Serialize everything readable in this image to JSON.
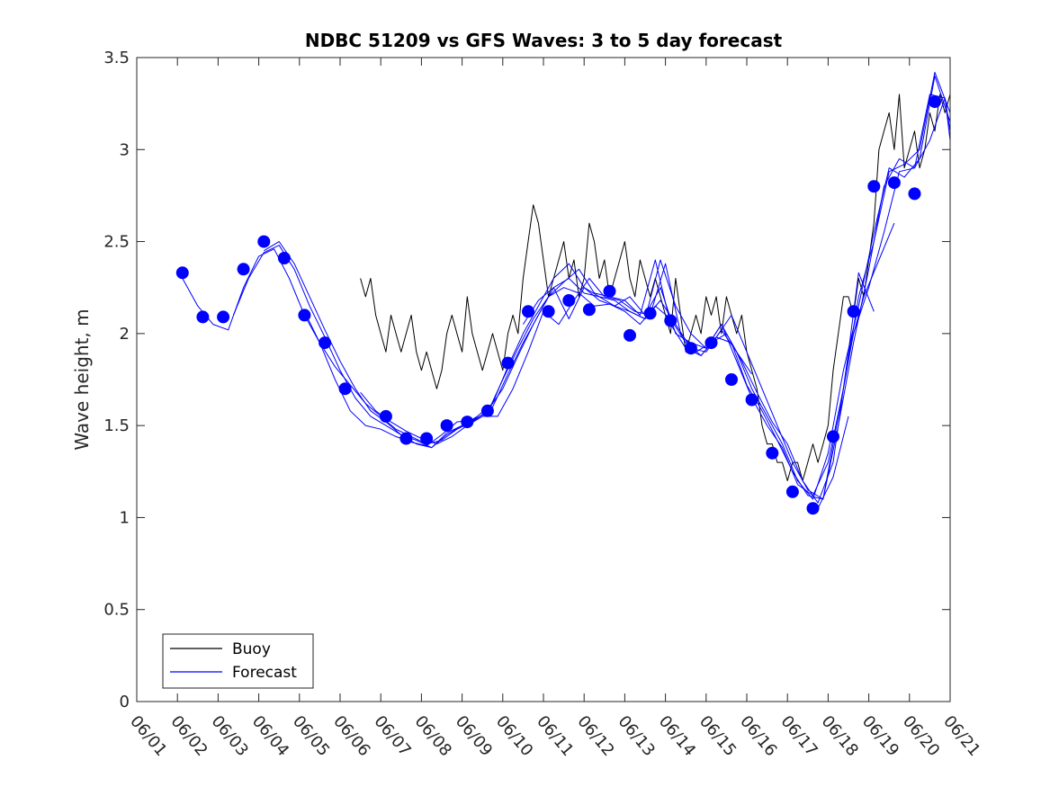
{
  "chart_data": {
    "type": "line",
    "title": "NDBC 51209 vs GFS Waves: 3 to 5 day forecast",
    "xlabel": "",
    "ylabel": "Wave height, m",
    "xlim": [
      "06/01",
      "06/21"
    ],
    "ylim": [
      0,
      3.5
    ],
    "x_ticks": [
      "06/01",
      "06/02",
      "06/03",
      "06/04",
      "06/05",
      "06/06",
      "06/07",
      "06/08",
      "06/09",
      "06/10",
      "06/11",
      "06/12",
      "06/13",
      "06/14",
      "06/15",
      "06/16",
      "06/17",
      "06/18",
      "06/19",
      "06/20",
      "06/21"
    ],
    "y_ticks": [
      "0",
      "0.5",
      "1",
      "1.5",
      "2",
      "2.5",
      "3",
      "3.5"
    ],
    "grid": false,
    "legend": {
      "position": "bottom-left",
      "entries": [
        "Buoy",
        "Forecast"
      ]
    },
    "colors": {
      "buoy": "#000000",
      "forecast": "#0000ff"
    },
    "series": [
      {
        "name": "Buoy",
        "style": "line",
        "x": [
          "06/06 12:00",
          "06/06 15:00",
          "06/06 18:00",
          "06/06 21:00",
          "06/07 00:00",
          "06/07 03:00",
          "06/07 06:00",
          "06/07 09:00",
          "06/07 12:00",
          "06/07 15:00",
          "06/07 18:00",
          "06/07 21:00",
          "06/08 00:00",
          "06/08 03:00",
          "06/08 06:00",
          "06/08 09:00",
          "06/08 12:00",
          "06/08 15:00",
          "06/08 18:00",
          "06/08 21:00",
          "06/09 00:00",
          "06/09 03:00",
          "06/09 06:00",
          "06/09 09:00",
          "06/09 12:00",
          "06/09 15:00",
          "06/09 18:00",
          "06/09 21:00",
          "06/10 00:00",
          "06/10 03:00",
          "06/10 06:00",
          "06/10 09:00",
          "06/10 12:00",
          "06/10 15:00",
          "06/10 18:00",
          "06/10 21:00",
          "06/11 00:00",
          "06/11 03:00",
          "06/11 06:00",
          "06/11 09:00",
          "06/11 12:00",
          "06/11 15:00",
          "06/11 18:00",
          "06/11 21:00",
          "06/12 00:00",
          "06/12 03:00",
          "06/12 06:00",
          "06/12 09:00",
          "06/12 12:00",
          "06/12 15:00",
          "06/12 18:00",
          "06/12 21:00",
          "06/13 00:00",
          "06/13 03:00",
          "06/13 06:00",
          "06/13 09:00",
          "06/13 12:00",
          "06/13 15:00",
          "06/13 18:00",
          "06/13 21:00",
          "06/14 00:00",
          "06/14 03:00",
          "06/14 06:00",
          "06/14 09:00",
          "06/14 12:00",
          "06/14 15:00",
          "06/14 18:00",
          "06/14 21:00",
          "06/15 00:00",
          "06/15 03:00",
          "06/15 06:00",
          "06/15 09:00",
          "06/15 12:00",
          "06/15 15:00",
          "06/15 18:00",
          "06/15 21:00",
          "06/16 00:00",
          "06/16 03:00",
          "06/16 06:00",
          "06/16 09:00",
          "06/16 12:00",
          "06/16 15:00",
          "06/16 18:00",
          "06/16 21:00",
          "06/17 00:00",
          "06/17 03:00",
          "06/17 06:00",
          "06/17 09:00",
          "06/17 12:00",
          "06/17 15:00",
          "06/17 18:00",
          "06/17 21:00",
          "06/18 00:00",
          "06/18 03:00",
          "06/18 06:00",
          "06/18 09:00",
          "06/18 12:00",
          "06/18 15:00",
          "06/18 18:00",
          "06/18 21:00",
          "06/19 00:00",
          "06/19 03:00",
          "06/19 06:00",
          "06/19 09:00",
          "06/19 12:00",
          "06/19 15:00",
          "06/19 18:00",
          "06/19 21:00",
          "06/20 00:00",
          "06/20 03:00",
          "06/20 06:00",
          "06/20 09:00",
          "06/20 12:00",
          "06/20 15:00",
          "06/20 18:00",
          "06/20 21:00",
          "06/21 00:00"
        ],
        "y": [
          2.3,
          2.2,
          2.3,
          2.1,
          2.0,
          1.9,
          2.1,
          2.0,
          1.9,
          2.0,
          2.1,
          1.9,
          1.8,
          1.9,
          1.8,
          1.7,
          1.8,
          2.0,
          2.1,
          2.0,
          1.9,
          2.2,
          2.0,
          1.9,
          1.8,
          1.9,
          2.0,
          1.9,
          1.8,
          2.0,
          2.1,
          2.0,
          2.3,
          2.5,
          2.7,
          2.6,
          2.4,
          2.2,
          2.3,
          2.4,
          2.5,
          2.3,
          2.4,
          2.2,
          2.3,
          2.6,
          2.5,
          2.3,
          2.4,
          2.2,
          2.3,
          2.4,
          2.5,
          2.3,
          2.2,
          2.4,
          2.3,
          2.2,
          2.3,
          2.2,
          2.1,
          2.0,
          2.3,
          2.1,
          1.9,
          2.0,
          2.1,
          2.0,
          2.2,
          2.1,
          2.2,
          2.0,
          2.2,
          2.1,
          2.0,
          2.1,
          1.9,
          1.8,
          1.7,
          1.5,
          1.4,
          1.4,
          1.3,
          1.3,
          1.2,
          1.3,
          1.3,
          1.2,
          1.3,
          1.4,
          1.3,
          1.4,
          1.5,
          1.8,
          2.0,
          2.2,
          2.2,
          2.1,
          2.3,
          2.2,
          2.4,
          2.6,
          3.0,
          3.1,
          3.2,
          3.0,
          3.3,
          2.9,
          3.0,
          3.1,
          2.9,
          3.0,
          3.2,
          3.1,
          3.3,
          3.2,
          3.3
        ]
      },
      {
        "name": "Forecast",
        "style": "markers",
        "x": [
          "06/02 03:00",
          "06/02 15:00",
          "06/03 03:00",
          "06/03 15:00",
          "06/04 03:00",
          "06/04 15:00",
          "06/05 03:00",
          "06/05 15:00",
          "06/06 03:00",
          "06/07 03:00",
          "06/07 15:00",
          "06/08 03:00",
          "06/08 15:00",
          "06/09 03:00",
          "06/09 15:00",
          "06/10 03:00",
          "06/10 15:00",
          "06/11 03:00",
          "06/11 15:00",
          "06/12 03:00",
          "06/12 15:00",
          "06/13 03:00",
          "06/13 15:00",
          "06/14 03:00",
          "06/14 15:00",
          "06/15 03:00",
          "06/15 15:00",
          "06/16 03:00",
          "06/16 15:00",
          "06/17 03:00",
          "06/17 15:00",
          "06/18 03:00",
          "06/18 15:00",
          "06/19 03:00",
          "06/19 15:00",
          "06/20 03:00",
          "06/20 15:00"
        ],
        "y": [
          2.33,
          2.09,
          2.09,
          2.35,
          2.5,
          2.41,
          2.1,
          1.95,
          1.7,
          1.55,
          1.43,
          1.43,
          1.5,
          1.52,
          1.58,
          1.84,
          2.12,
          2.12,
          2.18,
          2.13,
          2.23,
          1.99,
          2.11,
          2.07,
          1.92,
          1.95,
          1.75,
          1.64,
          1.35,
          1.14,
          1.05,
          1.44,
          2.12,
          2.8,
          2.82,
          2.76,
          3.26
        ]
      },
      {
        "name": "",
        "style": "line",
        "x": [
          "06/02 03:00",
          "06/02 12:00",
          "06/02 21:00",
          "06/03 06:00",
          "06/03 15:00",
          "06/04 00:00",
          "06/04 09:00",
          "06/04 18:00",
          "06/05 03:00",
          "06/05 12:00",
          "06/05 21:00",
          "06/06 06:00",
          "06/06 15:00",
          "06/07 00:00",
          "06/07 09:00",
          "06/07 18:00",
          "06/08 03:00",
          "06/08 12:00",
          "06/08 21:00",
          "06/09 06:00",
          "06/09 15:00",
          "06/10 00:00",
          "06/10 09:00",
          "06/10 18:00",
          "06/11 03:00",
          "06/11 12:00",
          "06/11 21:00",
          "06/12 06:00",
          "06/12 15:00",
          "06/13 00:00",
          "06/13 09:00",
          "06/13 18:00",
          "06/14 03:00",
          "06/14 12:00",
          "06/14 21:00",
          "06/15 06:00",
          "06/15 15:00",
          "06/16 00:00",
          "06/16 09:00",
          "06/16 18:00",
          "06/17 03:00",
          "06/17 12:00",
          "06/17 21:00",
          "06/18 06:00",
          "06/18 15:00",
          "06/19 00:00",
          "06/19 09:00",
          "06/19 18:00",
          "06/20 03:00",
          "06/20 12:00",
          "06/20 21:00",
          "06/21 00:00"
        ],
        "y": [
          2.3,
          2.15,
          2.05,
          2.02,
          2.25,
          2.42,
          2.46,
          2.3,
          2.1,
          1.95,
          1.75,
          1.58,
          1.5,
          1.48,
          1.44,
          1.41,
          1.39,
          1.45,
          1.52,
          1.53,
          1.57,
          1.75,
          1.92,
          2.08,
          2.2,
          2.25,
          2.22,
          2.15,
          2.16,
          2.12,
          2.05,
          2.15,
          2.08,
          1.95,
          1.88,
          1.98,
          1.95,
          1.72,
          1.58,
          1.42,
          1.25,
          1.12,
          1.1,
          1.5,
          1.95,
          2.35,
          2.8,
          2.95,
          2.9,
          3.05,
          3.28,
          3.1
        ]
      },
      {
        "name": "",
        "style": "line",
        "x": [
          "06/03 09:00",
          "06/03 18:00",
          "06/04 03:00",
          "06/04 12:00",
          "06/04 21:00",
          "06/05 06:00",
          "06/05 15:00",
          "06/06 00:00",
          "06/06 09:00",
          "06/06 18:00",
          "06/07 03:00",
          "06/07 12:00",
          "06/07 21:00",
          "06/08 06:00",
          "06/08 15:00",
          "06/09 00:00",
          "06/09 09:00",
          "06/09 18:00",
          "06/10 03:00",
          "06/10 12:00",
          "06/10 21:00",
          "06/11 06:00",
          "06/11 15:00",
          "06/12 00:00",
          "06/12 09:00",
          "06/12 18:00",
          "06/13 03:00",
          "06/13 12:00",
          "06/13 21:00",
          "06/14 06:00",
          "06/14 15:00",
          "06/15 00:00",
          "06/15 09:00",
          "06/15 18:00",
          "06/16 03:00",
          "06/16 12:00",
          "06/16 21:00",
          "06/17 06:00",
          "06/17 15:00",
          "06/18 00:00",
          "06/18 09:00",
          "06/18 18:00",
          "06/19 03:00",
          "06/19 12:00",
          "06/19 21:00",
          "06/20 06:00",
          "06/20 15:00",
          "06/21 00:00"
        ],
        "y": [
          2.1,
          2.3,
          2.44,
          2.48,
          2.35,
          2.15,
          1.98,
          1.8,
          1.65,
          1.55,
          1.5,
          1.45,
          1.4,
          1.38,
          1.46,
          1.5,
          1.54,
          1.6,
          1.78,
          1.95,
          2.1,
          2.25,
          2.3,
          2.22,
          2.2,
          2.18,
          2.12,
          2.08,
          2.18,
          2.05,
          1.92,
          1.9,
          2.02,
          1.9,
          1.7,
          1.55,
          1.4,
          1.2,
          1.1,
          1.35,
          1.8,
          2.15,
          2.55,
          2.9,
          2.85,
          2.95,
          3.4,
          3.15
        ]
      },
      {
        "name": "",
        "style": "line",
        "x": [
          "06/04 03:00",
          "06/04 12:00",
          "06/04 21:00",
          "06/05 06:00",
          "06/05 15:00",
          "06/06 00:00",
          "06/06 09:00",
          "06/06 18:00",
          "06/07 03:00",
          "06/07 12:00",
          "06/07 21:00",
          "06/08 06:00",
          "06/08 15:00",
          "06/09 00:00",
          "06/09 09:00",
          "06/09 18:00",
          "06/10 03:00",
          "06/10 12:00",
          "06/10 21:00",
          "06/11 06:00",
          "06/11 15:00",
          "06/12 00:00",
          "06/12 09:00",
          "06/12 18:00",
          "06/13 03:00",
          "06/13 12:00",
          "06/13 21:00",
          "06/14 06:00",
          "06/14 15:00",
          "06/15 00:00",
          "06/15 09:00",
          "06/15 18:00",
          "06/16 03:00",
          "06/16 12:00",
          "06/16 21:00",
          "06/17 06:00",
          "06/17 15:00",
          "06/18 00:00",
          "06/18 09:00",
          "06/18 18:00",
          "06/19 03:00",
          "06/19 12:00",
          "06/19 21:00",
          "06/20 06:00",
          "06/20 15:00",
          "06/21 00:00"
        ],
        "y": [
          2.45,
          2.5,
          2.38,
          2.2,
          2.02,
          1.85,
          1.7,
          1.58,
          1.52,
          1.45,
          1.42,
          1.38,
          1.45,
          1.5,
          1.55,
          1.62,
          1.82,
          2.0,
          2.15,
          2.3,
          2.38,
          2.25,
          2.18,
          2.15,
          2.2,
          2.1,
          2.25,
          2.0,
          1.95,
          1.92,
          2.05,
          1.85,
          1.65,
          1.5,
          1.38,
          1.18,
          1.12,
          1.3,
          1.7,
          2.2,
          2.5,
          2.88,
          2.92,
          3.0,
          3.42,
          3.2
        ]
      },
      {
        "name": "",
        "style": "line",
        "x": [
          "06/05 03:00",
          "06/05 12:00",
          "06/05 21:00",
          "06/06 06:00",
          "06/06 15:00",
          "06/07 00:00",
          "06/07 09:00",
          "06/07 18:00",
          "06/08 03:00",
          "06/08 12:00",
          "06/08 21:00",
          "06/09 06:00",
          "06/09 15:00",
          "06/10 00:00",
          "06/10 09:00",
          "06/10 18:00",
          "06/11 03:00",
          "06/11 12:00",
          "06/11 21:00",
          "06/12 06:00",
          "06/12 15:00",
          "06/13 00:00",
          "06/13 09:00",
          "06/13 18:00",
          "06/14 03:00",
          "06/14 12:00",
          "06/14 21:00",
          "06/15 06:00",
          "06/15 15:00",
          "06/16 00:00",
          "06/16 09:00",
          "06/16 18:00",
          "06/17 03:00",
          "06/17 12:00",
          "06/17 21:00",
          "06/18 06:00",
          "06/18 15:00",
          "06/19 00:00",
          "06/19 09:00",
          "06/19 18:00",
          "06/20 03:00",
          "06/20 12:00",
          "06/20 21:00",
          "06/21 00:00"
        ],
        "y": [
          2.12,
          1.95,
          1.82,
          1.72,
          1.62,
          1.55,
          1.48,
          1.44,
          1.4,
          1.42,
          1.48,
          1.52,
          1.58,
          1.7,
          1.88,
          2.05,
          2.2,
          2.28,
          2.35,
          2.22,
          2.2,
          2.18,
          2.1,
          2.4,
          2.05,
          1.92,
          1.88,
          1.98,
          2.1,
          1.9,
          1.7,
          1.5,
          1.3,
          1.15,
          1.1,
          1.55,
          2.0,
          2.25,
          2.55,
          2.88,
          2.9,
          3.3,
          3.28,
          3.05
        ]
      },
      {
        "name": "",
        "style": "line",
        "x": [
          "06/06 12:00",
          "06/06 21:00",
          "06/07 06:00",
          "06/07 15:00",
          "06/08 00:00",
          "06/08 09:00",
          "06/08 18:00",
          "06/09 03:00",
          "06/09 12:00",
          "06/09 21:00",
          "06/10 06:00",
          "06/10 15:00",
          "06/11 00:00",
          "06/11 09:00",
          "06/11 18:00",
          "06/12 03:00",
          "06/12 12:00",
          "06/12 21:00",
          "06/13 06:00",
          "06/13 15:00",
          "06/14 00:00",
          "06/14 09:00",
          "06/14 18:00",
          "06/15 03:00",
          "06/15 12:00",
          "06/15 21:00",
          "06/16 06:00",
          "06/16 15:00",
          "06/17 00:00",
          "06/17 09:00",
          "06/17 18:00",
          "06/18 03:00",
          "06/18 12:00",
          "06/18 21:00",
          "06/19 06:00",
          "06/19 15:00"
        ],
        "y": [
          1.68,
          1.58,
          1.52,
          1.47,
          1.43,
          1.4,
          1.44,
          1.5,
          1.55,
          1.55,
          1.7,
          1.9,
          2.12,
          2.05,
          2.18,
          2.3,
          2.2,
          2.18,
          2.12,
          2.1,
          2.38,
          2.0,
          1.9,
          1.95,
          2.0,
          1.85,
          1.68,
          1.52,
          1.4,
          1.2,
          1.08,
          1.3,
          1.9,
          2.2,
          2.4,
          2.6
        ]
      },
      {
        "name": "",
        "style": "line",
        "x": [
          "06/10 12:00",
          "06/10 21:00",
          "06/11 06:00",
          "06/11 15:00",
          "06/12 00:00",
          "06/12 09:00",
          "06/12 18:00",
          "06/13 03:00",
          "06/13 12:00",
          "06/13 21:00",
          "06/14 06:00",
          "06/14 15:00",
          "06/15 00:00",
          "06/15 09:00",
          "06/15 18:00",
          "06/16 03:00"
        ],
        "y": [
          2.05,
          2.18,
          2.25,
          2.08,
          2.25,
          2.2,
          2.15,
          2.12,
          2.08,
          2.4,
          2.15,
          2.0,
          1.92,
          2.05,
          1.9,
          1.78
        ]
      },
      {
        "name": "",
        "style": "line",
        "x": [
          "06/17 18:00",
          "06/18 03:00",
          "06/18 12:00"
        ],
        "y": [
          1.05,
          1.22,
          1.55
        ]
      },
      {
        "name": "",
        "style": "line",
        "x": [
          "06/18 12:00",
          "06/18 18:00",
          "06/19 03:00"
        ],
        "y": [
          1.9,
          2.33,
          2.12
        ]
      }
    ]
  }
}
